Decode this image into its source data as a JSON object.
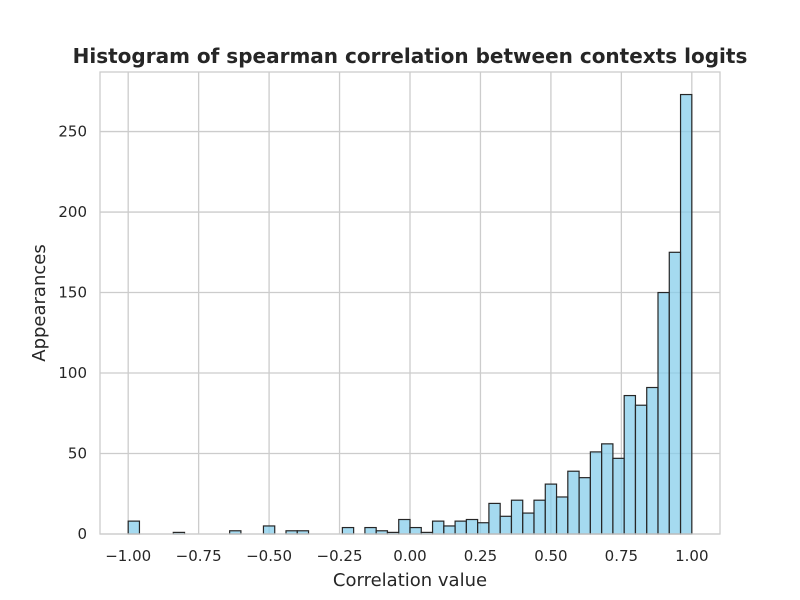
{
  "chart_data": {
    "type": "bar",
    "subtype": "histogram",
    "title": "Histogram of spearman correlation between contexts logits",
    "xlabel": "Correlation value",
    "ylabel": "Appearances",
    "xlim": [
      -1.1,
      1.1
    ],
    "ylim": [
      0,
      287
    ],
    "xticks": [
      -1.0,
      -0.75,
      -0.5,
      -0.25,
      0.0,
      0.25,
      0.5,
      0.75,
      1.0
    ],
    "xtick_labels": [
      "−1.00",
      "−0.75",
      "−0.50",
      "−0.25",
      "0.00",
      "0.25",
      "0.50",
      "0.75",
      "1.00"
    ],
    "yticks": [
      0,
      50,
      100,
      150,
      200,
      250
    ],
    "ytick_labels": [
      "0",
      "50",
      "100",
      "150",
      "200",
      "250"
    ],
    "grid": true,
    "bin_start": -1.0,
    "bin_width": 0.04,
    "values": [
      8,
      0,
      0,
      0,
      1,
      0,
      0,
      0,
      0,
      2,
      0,
      0,
      5,
      0,
      2,
      2,
      0,
      0,
      0,
      4,
      0,
      4,
      2,
      1,
      9,
      4,
      1,
      8,
      5,
      8,
      9,
      7,
      19,
      11,
      21,
      13,
      21,
      31,
      23,
      39,
      35,
      51,
      56,
      47,
      86,
      80,
      91,
      150,
      175,
      273
    ],
    "bar_color": "#87ceeb",
    "edge_color": "#262626"
  }
}
